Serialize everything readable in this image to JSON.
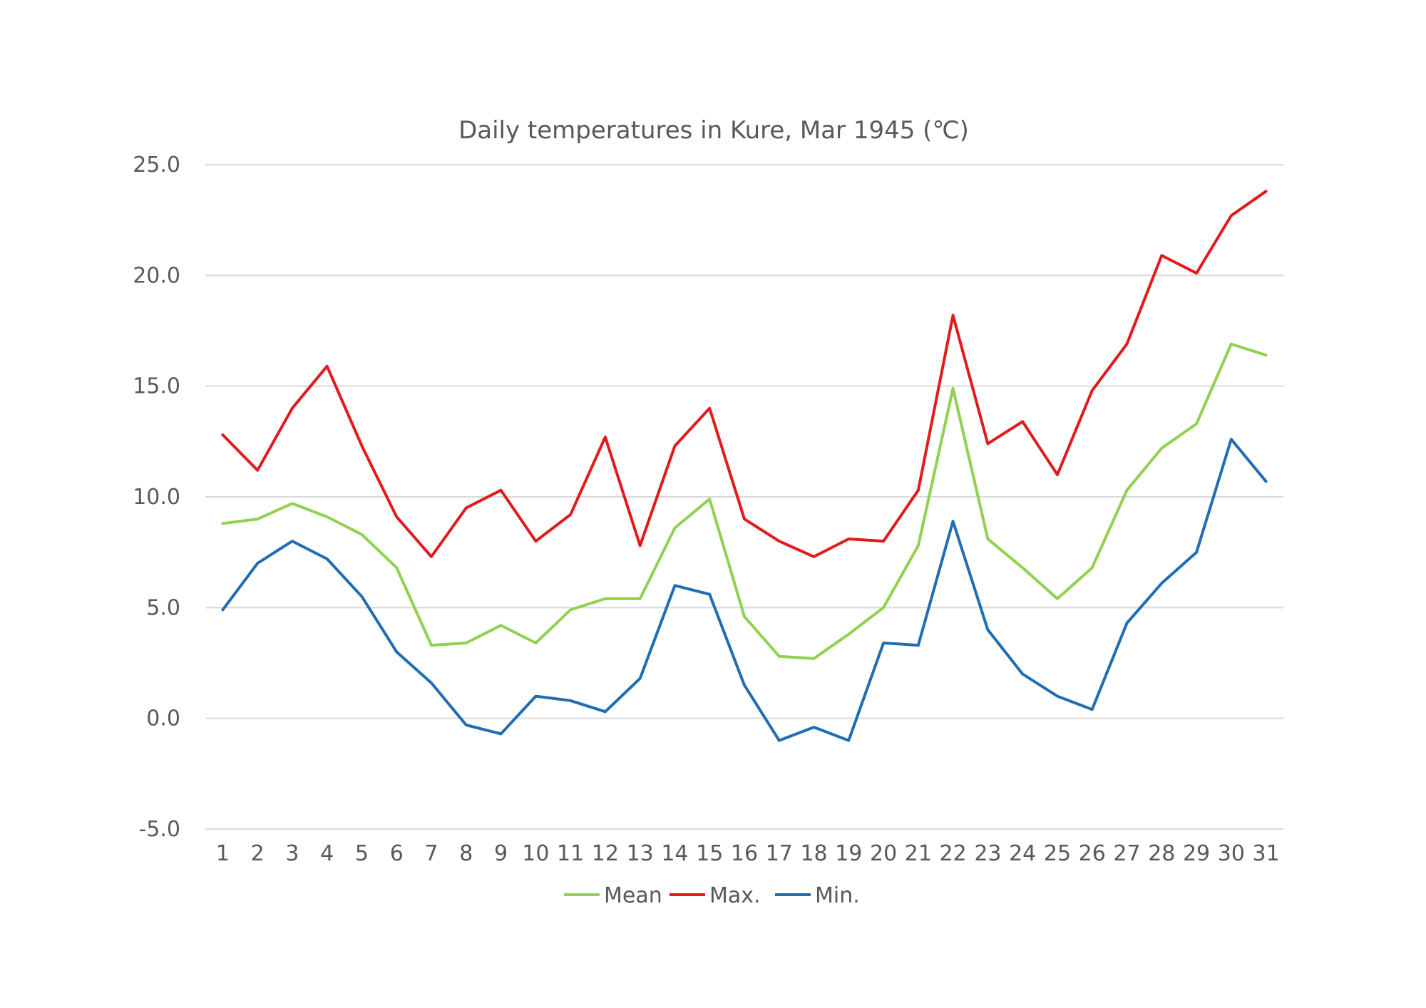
{
  "chart_data": {
    "type": "line",
    "title": "Daily temperatures in Kure, Mar 1945 (℃)",
    "xlabel": "",
    "ylabel": "",
    "categories": [
      "1",
      "2",
      "3",
      "4",
      "5",
      "6",
      "7",
      "8",
      "9",
      "10",
      "11",
      "12",
      "13",
      "14",
      "15",
      "16",
      "17",
      "18",
      "19",
      "20",
      "21",
      "22",
      "23",
      "24",
      "25",
      "26",
      "27",
      "28",
      "29",
      "30",
      "31"
    ],
    "ylim": [
      -5,
      25
    ],
    "yticks": [
      -5,
      0,
      5,
      10,
      15,
      20,
      25
    ],
    "ytick_labels": [
      "-5.0",
      "0.0",
      "5.0",
      "10.0",
      "15.0",
      "20.0",
      "25.0"
    ],
    "grid": true,
    "legend_position": "bottom",
    "series": [
      {
        "name": "Mean",
        "color": "#92d050",
        "values": [
          8.8,
          9.0,
          9.7,
          9.1,
          8.3,
          6.8,
          3.3,
          3.4,
          4.2,
          3.4,
          4.9,
          5.4,
          5.4,
          8.6,
          9.9,
          4.6,
          2.8,
          2.7,
          3.8,
          5.0,
          7.8,
          14.9,
          8.1,
          6.8,
          5.4,
          6.8,
          10.3,
          12.2,
          13.3,
          16.9,
          16.4
        ]
      },
      {
        "name": "Max.",
        "color": "#e31a1c",
        "values": [
          12.8,
          11.2,
          14.0,
          15.9,
          12.3,
          9.1,
          7.3,
          9.5,
          10.3,
          8.0,
          9.2,
          12.7,
          7.8,
          12.3,
          14.0,
          9.0,
          8.0,
          7.3,
          8.1,
          8.0,
          10.3,
          18.2,
          12.4,
          13.4,
          11.0,
          14.8,
          16.9,
          20.9,
          20.1,
          22.7,
          23.8
        ]
      },
      {
        "name": "Min.",
        "color": "#1f6db3",
        "values": [
          4.9,
          7.0,
          8.0,
          7.2,
          5.5,
          3.0,
          1.6,
          -0.3,
          -0.7,
          1.0,
          0.8,
          0.3,
          1.8,
          6.0,
          5.6,
          1.5,
          -1.0,
          -0.4,
          -1.0,
          3.4,
          3.3,
          8.9,
          4.0,
          2.0,
          1.0,
          0.4,
          4.3,
          6.1,
          7.5,
          12.6,
          10.7
        ]
      }
    ]
  }
}
